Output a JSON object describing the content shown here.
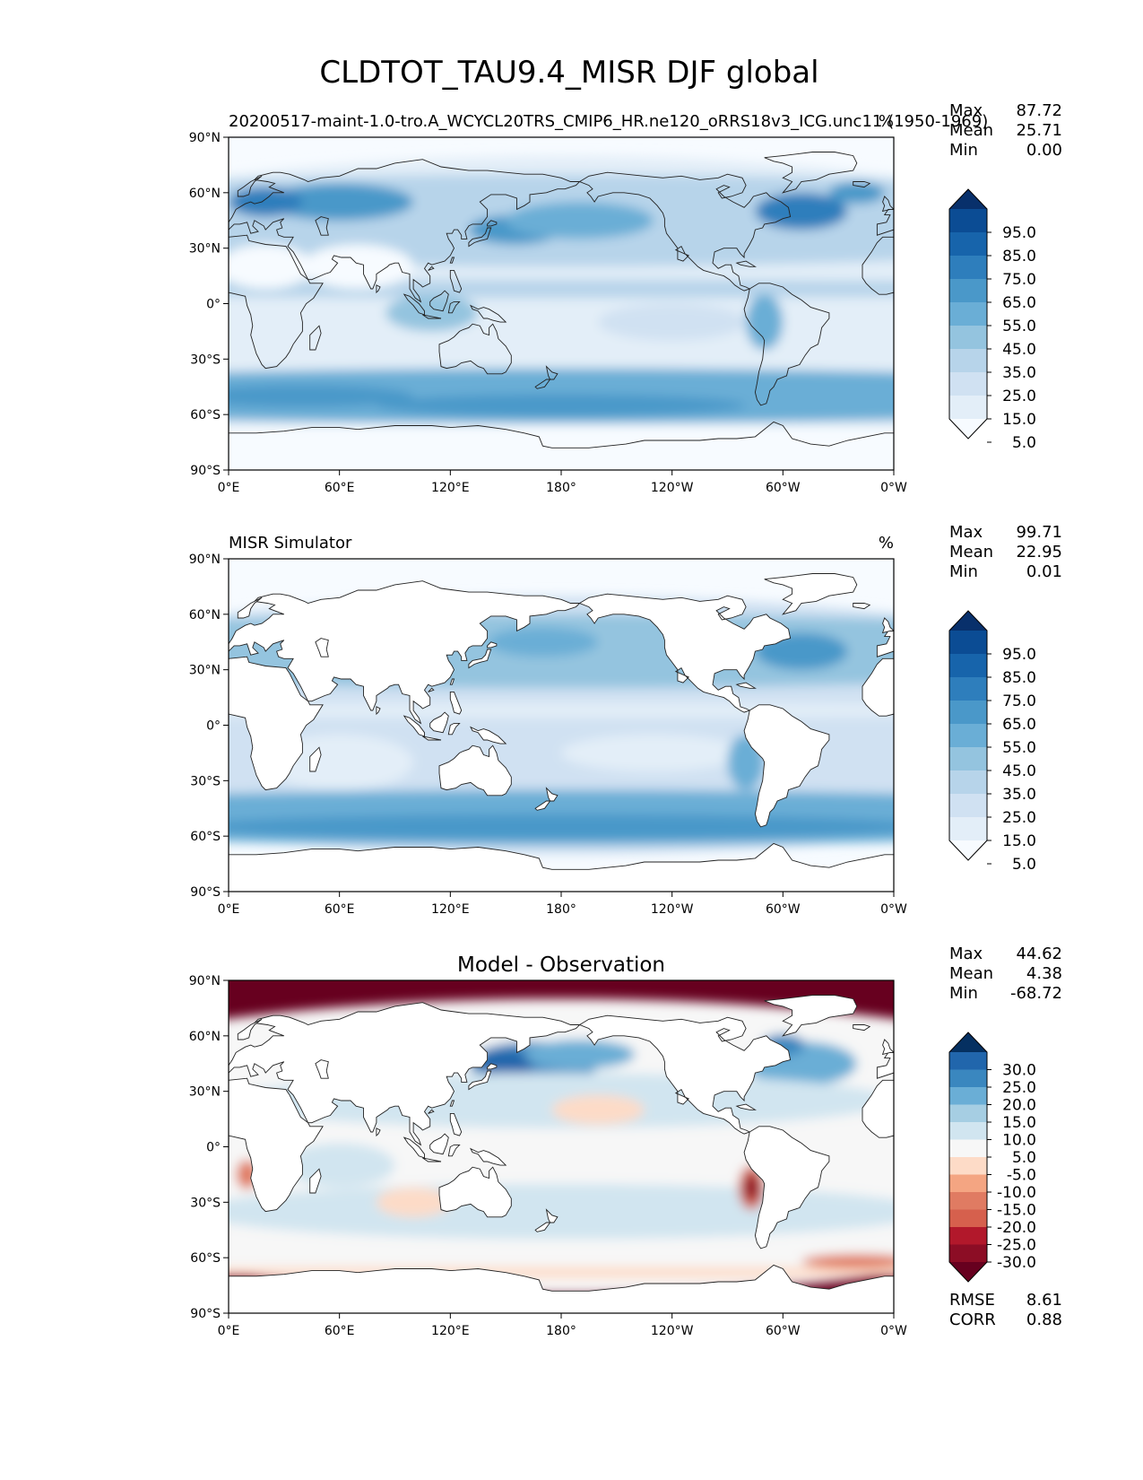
{
  "figure": {
    "title": "CLDTOT_TAU9.4_MISR DJF global"
  },
  "axes": {
    "lat_labels": [
      "90°N",
      "60°N",
      "30°N",
      "0°",
      "30°S",
      "60°S",
      "90°S"
    ],
    "lon_labels": [
      "0°E",
      "60°E",
      "120°E",
      "180°",
      "120°W",
      "60°W",
      "0°W"
    ]
  },
  "panels": [
    {
      "id": "model",
      "left_title": "20200517-maint-1.0-tro.A_WCYCL20TRS_CMIP6_HR.ne120_oRRS18v3_ICG.unc11 (1950-1969)",
      "center_title": "",
      "units": "%",
      "stats": [
        {
          "label": "Max",
          "value": "87.72"
        },
        {
          "label": "Mean",
          "value": "25.71"
        },
        {
          "label": "Min",
          "value": "0.00"
        }
      ],
      "colorbar": {
        "ticks": [
          "95.0",
          "85.0",
          "75.0",
          "65.0",
          "55.0",
          "45.0",
          "35.0",
          "25.0",
          "15.0",
          "5.0"
        ],
        "colors": [
          "#08306b",
          "#0b4c94",
          "#1764ab",
          "#2e7ebc",
          "#4a98c9",
          "#6aaed6",
          "#94c4df",
          "#b7d4ea",
          "#d0e1f2",
          "#e3eef8",
          "#f7fbff"
        ]
      },
      "footer": []
    },
    {
      "id": "obs",
      "left_title": "MISR Simulator",
      "center_title": "",
      "units": "%",
      "stats": [
        {
          "label": "Max",
          "value": "99.71"
        },
        {
          "label": "Mean",
          "value": "22.95"
        },
        {
          "label": "Min",
          "value": "0.01"
        }
      ],
      "colorbar": {
        "ticks": [
          "95.0",
          "85.0",
          "75.0",
          "65.0",
          "55.0",
          "45.0",
          "35.0",
          "25.0",
          "15.0",
          "5.0"
        ],
        "colors": [
          "#08306b",
          "#0b4c94",
          "#1764ab",
          "#2e7ebc",
          "#4a98c9",
          "#6aaed6",
          "#94c4df",
          "#b7d4ea",
          "#d0e1f2",
          "#e3eef8",
          "#f7fbff"
        ]
      },
      "footer": []
    },
    {
      "id": "diff",
      "left_title": "",
      "center_title": "Model - Observation",
      "units": "",
      "stats": [
        {
          "label": "Max",
          "value": "44.62"
        },
        {
          "label": "Mean",
          "value": "4.38"
        },
        {
          "label": "Min",
          "value": "-68.72"
        }
      ],
      "colorbar": {
        "ticks": [
          "30.0",
          "25.0",
          "20.0",
          "15.0",
          "10.0",
          "5.0",
          "-5.0",
          "-10.0",
          "-15.0",
          "-20.0",
          "-25.0",
          "-30.0"
        ],
        "colors": [
          "#053061",
          "#2166ac",
          "#3a87bf",
          "#6aaed6",
          "#a6cee3",
          "#d1e5f0",
          "#f7f7f7",
          "#fddbc7",
          "#f4a582",
          "#e07b62",
          "#d6604d",
          "#b2182b",
          "#8c0d25",
          "#67001f"
        ]
      },
      "footer": [
        {
          "label": "RMSE",
          "value": "8.61"
        },
        {
          "label": "CORR",
          "value": "0.88"
        }
      ]
    }
  ]
}
